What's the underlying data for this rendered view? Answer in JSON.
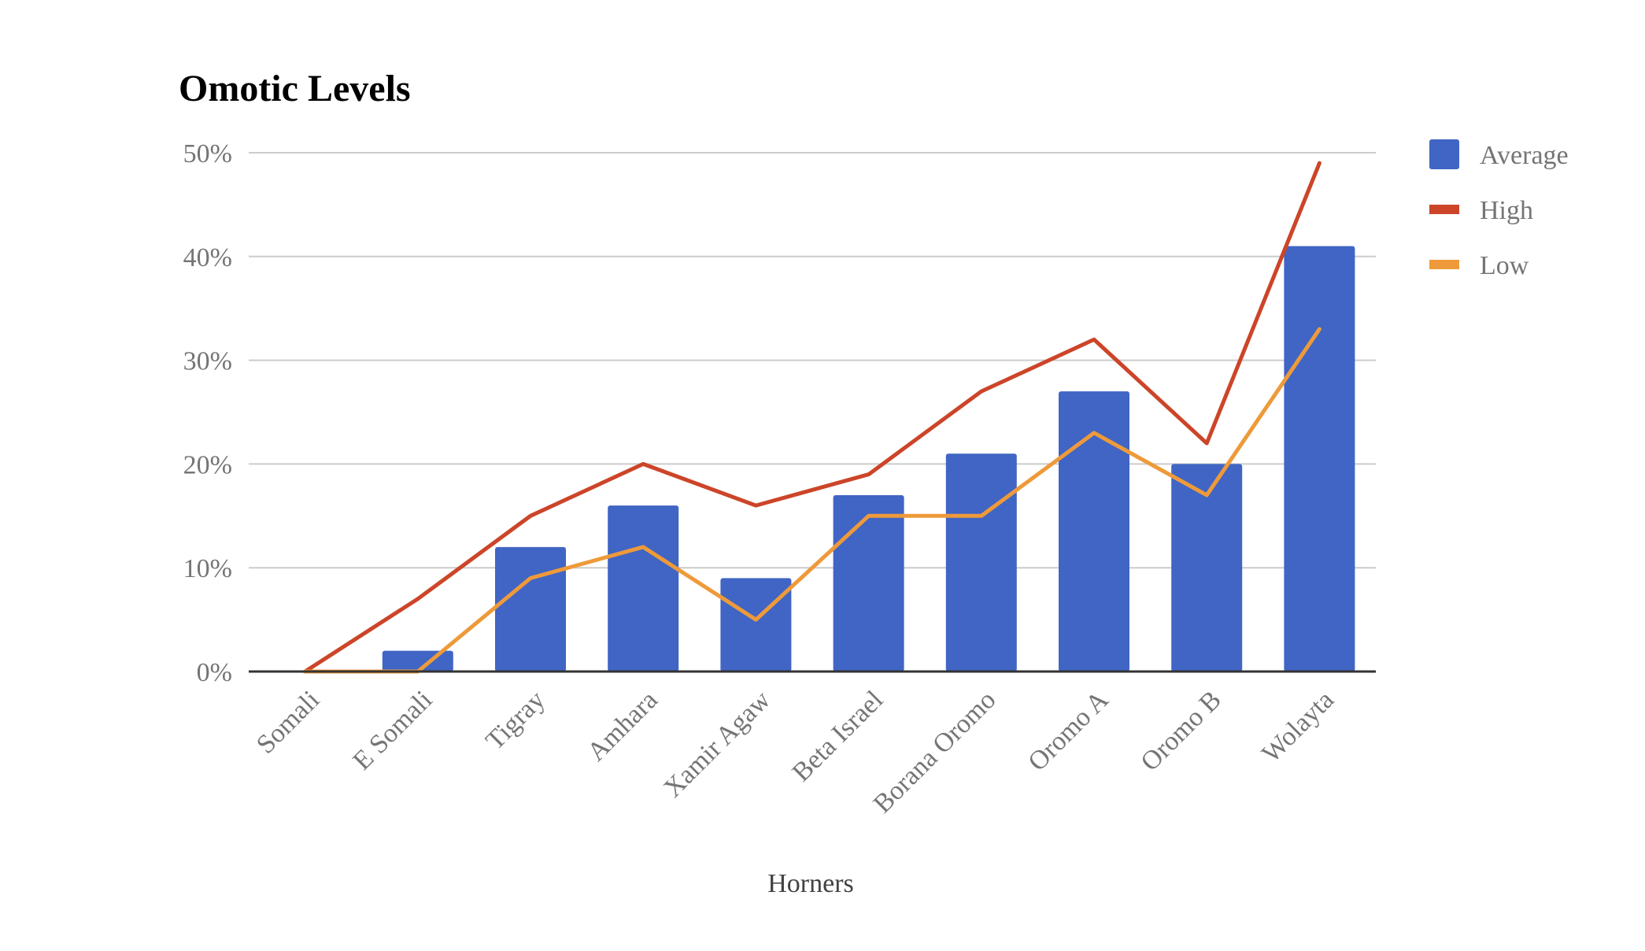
{
  "chart_data": {
    "type": "bar",
    "title": "Omotic Levels",
    "xlabel": "Horners",
    "ylabel": "",
    "categories": [
      "Somali",
      "E Somali",
      "Tigray",
      "Amhara",
      "Xamir Agaw",
      "Beta Israel",
      "Borana Oromo",
      "Oromo A",
      "Oromo B",
      "Wolayta"
    ],
    "ylim": [
      0,
      50
    ],
    "yticks": [
      0,
      10,
      20,
      30,
      40,
      50
    ],
    "ytick_labels": [
      "0%",
      "10%",
      "20%",
      "30%",
      "40%",
      "50%"
    ],
    "grid": true,
    "legend_position": "right",
    "series": [
      {
        "name": "Average",
        "type": "bar",
        "color": "#4065c4",
        "values": [
          0,
          2,
          12,
          16,
          9,
          17,
          21,
          27,
          20,
          41
        ]
      },
      {
        "name": "High",
        "type": "line",
        "color": "#cc4529",
        "values": [
          0,
          7,
          15,
          20,
          16,
          19,
          27,
          32,
          22,
          49
        ]
      },
      {
        "name": "Low",
        "type": "line",
        "color": "#ee9a3a",
        "values": [
          0,
          0,
          9,
          12,
          5,
          15,
          15,
          23,
          17,
          33
        ]
      }
    ]
  }
}
